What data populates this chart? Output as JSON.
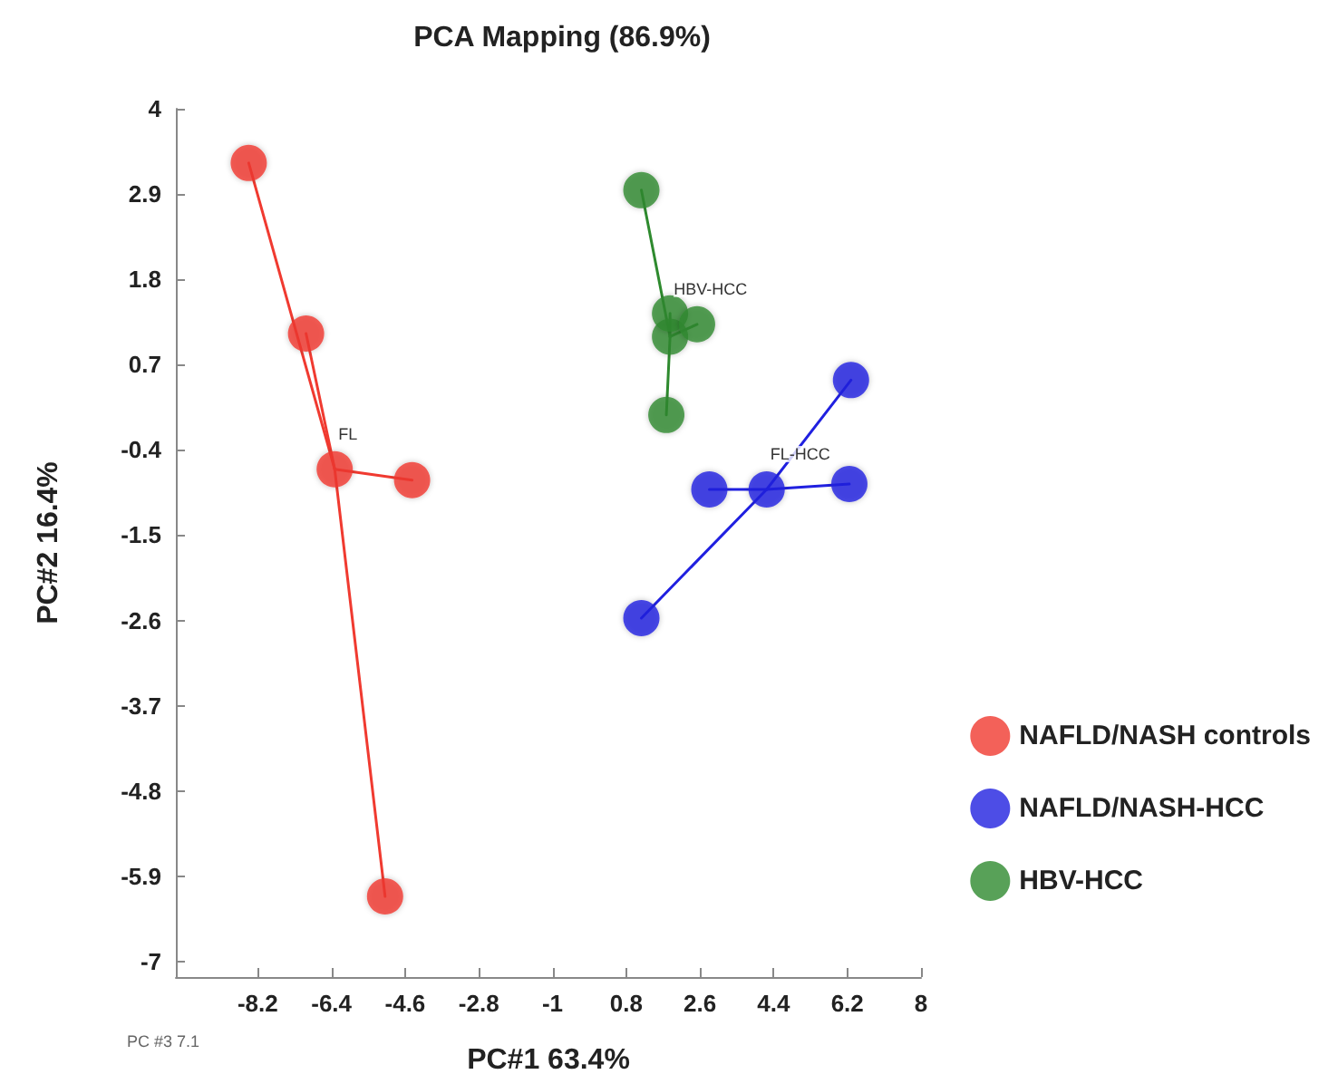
{
  "chart_data": {
    "type": "scatter",
    "title": "PCA Mapping (86.9%)",
    "xlabel": "PC#1 63.4%",
    "ylabel": "PC#2 16.4%",
    "series": [
      {
        "type": "line",
        "color": "#f03a30",
        "x": [
          -6.32,
          -8.42
        ],
        "values": [
          -0.65,
          3.3
        ]
      },
      {
        "type": "line",
        "color": "#f03a30",
        "x": [
          -6.32,
          -7.02
        ],
        "values": [
          -0.65,
          1.1
        ]
      },
      {
        "type": "line",
        "color": "#f03a30",
        "x": [
          -6.32,
          -4.43
        ],
        "values": [
          -0.65,
          -0.79
        ]
      },
      {
        "type": "line",
        "color": "#f03a30",
        "x": [
          -6.32,
          -5.09
        ],
        "values": [
          -0.65,
          -6.16
        ]
      },
      {
        "type": "line",
        "color": "#2020e0",
        "x": [
          4.23,
          2.83
        ],
        "values": [
          -0.91,
          -0.91
        ]
      },
      {
        "type": "line",
        "color": "#2020e0",
        "x": [
          4.23,
          6.25
        ],
        "values": [
          -0.91,
          -0.84
        ]
      },
      {
        "type": "line",
        "color": "#2020e0",
        "x": [
          4.23,
          6.29
        ],
        "values": [
          -0.91,
          0.5
        ]
      },
      {
        "type": "line",
        "color": "#2020e0",
        "x": [
          4.23,
          1.17
        ],
        "values": [
          -0.91,
          -2.57
        ]
      },
      {
        "type": "line",
        "color": "#2e8a2e",
        "x": [
          1.87,
          1.17
        ],
        "values": [
          1.06,
          2.95
        ]
      },
      {
        "type": "line",
        "color": "#2e8a2e",
        "x": [
          1.87,
          1.87
        ],
        "values": [
          1.06,
          1.36
        ]
      },
      {
        "type": "line",
        "color": "#2e8a2e",
        "x": [
          1.87,
          2.53
        ],
        "values": [
          1.06,
          1.22
        ]
      },
      {
        "type": "line",
        "color": "#2e8a2e",
        "x": [
          1.87,
          1.78
        ],
        "values": [
          1.06,
          0.05
        ]
      },
      {
        "name": "NAFLD/NASH controls",
        "color": "#f03a30",
        "x": [
          -6.32,
          -8.42,
          -7.02,
          -4.43,
          -5.09
        ],
        "values": [
          -0.65,
          3.3,
          1.1,
          -0.79,
          -6.16
        ]
      },
      {
        "name": "NAFLD/NASH-HCC",
        "color": "#2020e0",
        "x": [
          4.23,
          2.83,
          6.25,
          6.29,
          1.17
        ],
        "values": [
          -0.91,
          -0.91,
          -0.84,
          0.5,
          -2.57
        ]
      },
      {
        "name": "HBV-HCC",
        "color": "#2e8a2e",
        "x": [
          1.87,
          1.17,
          1.87,
          2.53,
          1.78
        ],
        "values": [
          1.06,
          2.95,
          1.36,
          1.22,
          0.05
        ]
      }
    ],
    "annotations": [
      {
        "text": "FL",
        "x": -6.32,
        "y": -0.65
      },
      {
        "text": "FL-HCC",
        "x": 4.23,
        "y": -0.91
      },
      {
        "text": "HBV-HCC",
        "x": 1.87,
        "y": 1.22
      },
      "PC #3 7.1"
    ],
    "xlim": [
      -10.2,
      8
    ],
    "ylim": [
      -7.2,
      4
    ],
    "xticks": [
      -8.2,
      -6.4,
      -4.6,
      -2.8,
      -1,
      0.8,
      2.6,
      4.4,
      6.2,
      8
    ],
    "yticks": [
      -7,
      -5.9,
      -4.8,
      -3.7,
      -2.6,
      -1.5,
      -0.4,
      0.7,
      1.8,
      2.9,
      4
    ],
    "grid": false,
    "legend": "right"
  }
}
